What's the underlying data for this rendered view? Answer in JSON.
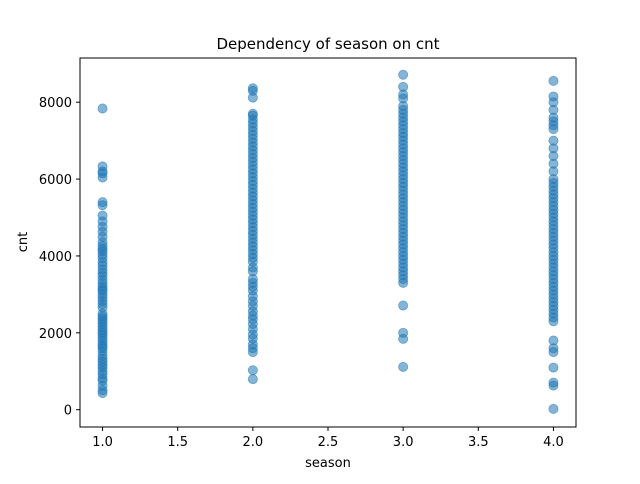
{
  "chart_data": {
    "type": "scatter",
    "title": "Dependency of season on cnt",
    "xlabel": "season",
    "ylabel": "cnt",
    "xlim": [
      0.85,
      4.15
    ],
    "ylim": [
      -450,
      9150
    ],
    "xticks": [
      1.0,
      1.5,
      2.0,
      2.5,
      3.0,
      3.5,
      4.0
    ],
    "xtick_labels": [
      "1.0",
      "1.5",
      "2.0",
      "2.5",
      "3.0",
      "3.5",
      "4.0"
    ],
    "yticks": [
      0,
      2000,
      4000,
      6000,
      8000
    ],
    "ytick_labels": [
      "0",
      "2000",
      "4000",
      "6000",
      "8000"
    ],
    "grid": false,
    "marker_color": "#1f77b4",
    "marker_alpha": 0.55,
    "series": [
      {
        "x": 1.0,
        "y": [
          431,
          506,
          623,
          754,
          822,
          920,
          1005,
          1096,
          1167,
          1248,
          1321,
          1406,
          1510,
          1600,
          1650,
          1720,
          1800,
          1870,
          1950,
          2010,
          2076,
          2150,
          2230,
          2294,
          2368,
          2429,
          2500,
          2660,
          2750,
          2830,
          2920,
          3000,
          3090,
          3140,
          3210,
          3290,
          3380,
          3480,
          3560,
          3650,
          3750,
          3840,
          3940,
          4030,
          4120,
          4180,
          4260,
          4360,
          4500,
          4630,
          4760,
          4900,
          5050,
          5320,
          5400,
          6040,
          6150,
          6200,
          6330,
          7836
        ]
      },
      {
        "x": 2.0,
        "y": [
          795,
          1027,
          1500,
          1600,
          1700,
          1850,
          1960,
          2100,
          2230,
          2350,
          2450,
          2560,
          2700,
          2820,
          2950,
          3100,
          3200,
          3300,
          3400,
          3600,
          3700,
          3850,
          3950,
          4050,
          4150,
          4250,
          4350,
          4450,
          4550,
          4650,
          4750,
          4850,
          4950,
          5050,
          5150,
          5250,
          5350,
          5450,
          5550,
          5650,
          5750,
          5850,
          5950,
          6050,
          6150,
          6250,
          6350,
          6450,
          6550,
          6650,
          6750,
          6850,
          6950,
          7050,
          7150,
          7250,
          7350,
          7450,
          7550,
          7650,
          7700,
          8120,
          8294,
          8362
        ]
      },
      {
        "x": 3.0,
        "y": [
          1115,
          1842,
          2000,
          2710,
          3300,
          3400,
          3500,
          3600,
          3700,
          3800,
          3900,
          4000,
          4100,
          4200,
          4300,
          4400,
          4500,
          4600,
          4700,
          4800,
          4900,
          5000,
          5100,
          5200,
          5300,
          5400,
          5500,
          5600,
          5700,
          5800,
          5900,
          6000,
          6100,
          6200,
          6300,
          6400,
          6500,
          6600,
          6700,
          6800,
          6900,
          7000,
          7100,
          7200,
          7300,
          7400,
          7500,
          7600,
          7700,
          7800,
          7900,
          8100,
          8200,
          8400,
          8714
        ]
      },
      {
        "x": 4.0,
        "y": [
          22,
          627,
          705,
          1096,
          1500,
          1600,
          1800,
          2300,
          2400,
          2500,
          2600,
          2700,
          2800,
          2900,
          3000,
          3100,
          3200,
          3300,
          3400,
          3500,
          3600,
          3700,
          3800,
          3900,
          4000,
          4100,
          4200,
          4300,
          4400,
          4500,
          4600,
          4700,
          4800,
          4900,
          5000,
          5100,
          5200,
          5300,
          5400,
          5500,
          5600,
          5700,
          5800,
          5900,
          6000,
          6200,
          6400,
          6600,
          6800,
          7000,
          7300,
          7400,
          7500,
          7600,
          7800,
          8000,
          8150,
          8555
        ]
      }
    ]
  }
}
